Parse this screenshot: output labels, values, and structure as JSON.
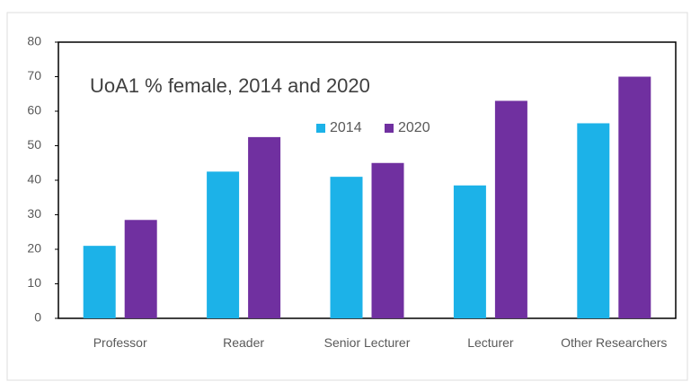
{
  "chart_data": {
    "type": "bar",
    "title": "UoA1 % female, 2014 and 2020",
    "categories": [
      "Professor",
      "Reader",
      "Senior Lecturer",
      "Lecturer",
      "Other Researchers"
    ],
    "series": [
      {
        "name": "2014",
        "color": "#1cb2e8",
        "values": [
          21,
          42.5,
          41,
          38.5,
          56.5
        ]
      },
      {
        "name": "2020",
        "color": "#7030a0",
        "values": [
          28.5,
          52.5,
          45,
          63,
          70
        ]
      }
    ],
    "ylim": [
      0,
      80
    ],
    "yticks": [
      0,
      10,
      20,
      30,
      40,
      50,
      60,
      70,
      80
    ]
  }
}
